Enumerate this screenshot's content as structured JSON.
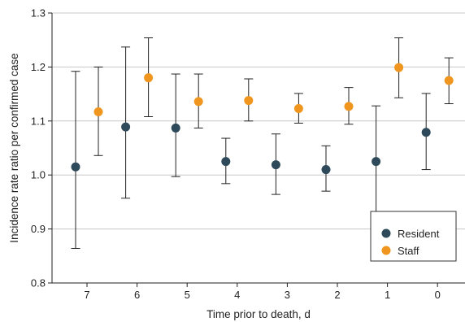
{
  "chart_data": {
    "type": "scatter",
    "subtype": "point-with-error-bars",
    "xlabel": "Time prior to death, d",
    "ylabel": "Incidence rate ratio per confirmed case",
    "categories": [
      "7",
      "6",
      "5",
      "4",
      "3",
      "2",
      "1",
      "0"
    ],
    "ylim": [
      0.8,
      1.3
    ],
    "yticks": [
      "0.8",
      "0.9",
      "1.0",
      "1.1",
      "1.2",
      "1.3"
    ],
    "grid": "horizontal",
    "legend_position": "bottom-right",
    "series": [
      {
        "name": "Resident",
        "color": "#2e4a5a",
        "values": [
          1.015,
          1.089,
          1.087,
          1.025,
          1.019,
          1.01,
          1.025,
          1.079
        ],
        "lower": [
          0.864,
          0.957,
          0.997,
          0.984,
          0.964,
          0.97,
          0.932,
          1.01
        ],
        "upper": [
          1.192,
          1.237,
          1.187,
          1.068,
          1.076,
          1.054,
          1.128,
          1.151
        ]
      },
      {
        "name": "Staff",
        "color": "#f0961f",
        "values": [
          1.117,
          1.18,
          1.136,
          1.138,
          1.123,
          1.127,
          1.199,
          1.175
        ],
        "lower": [
          1.036,
          1.108,
          1.087,
          1.1,
          1.096,
          1.094,
          1.143,
          1.132
        ],
        "upper": [
          1.2,
          1.254,
          1.187,
          1.178,
          1.151,
          1.162,
          1.254,
          1.217
        ]
      }
    ]
  }
}
